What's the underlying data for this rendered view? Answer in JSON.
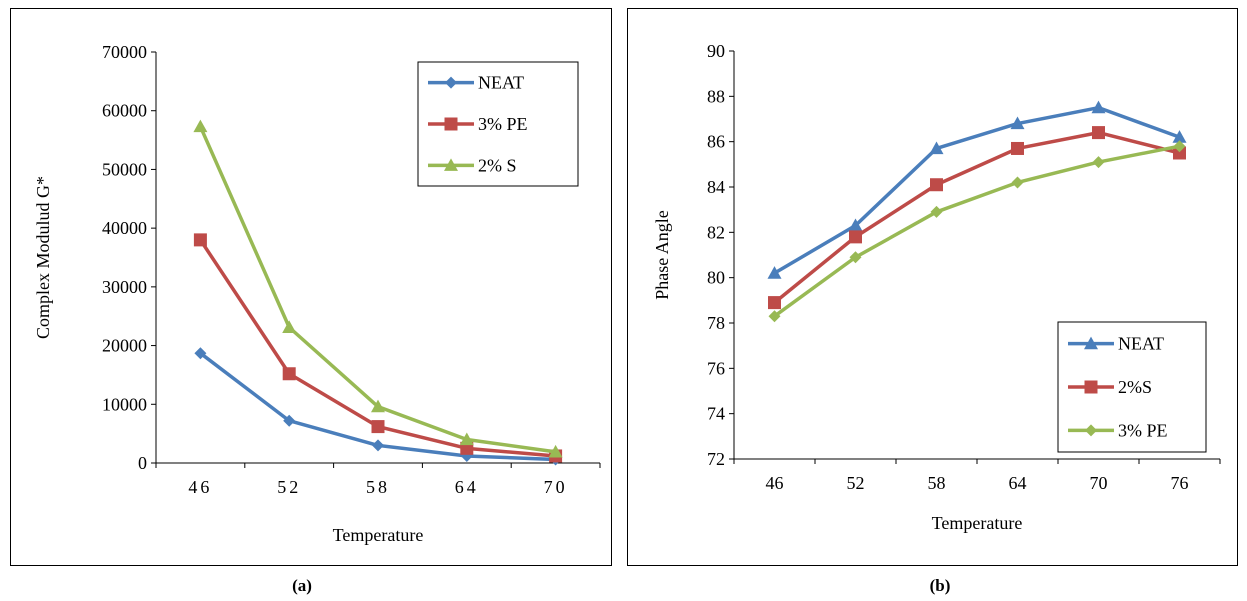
{
  "captions": {
    "a": "(a)",
    "b": "(b)"
  },
  "chart_data": [
    {
      "type": "line",
      "title": "",
      "xlabel": "Temperature",
      "ylabel": "Complex Modulud G*",
      "categories": [
        "46",
        "52",
        "58",
        "64",
        "70"
      ],
      "ylim": [
        0,
        70000
      ],
      "yticks": [
        0,
        10000,
        20000,
        30000,
        40000,
        50000,
        60000,
        70000
      ],
      "grid": false,
      "legend_position": "top-right",
      "series": [
        {
          "name": "NEAT",
          "color": "#4a7ebb",
          "marker": "diamond",
          "values": [
            18700,
            7200,
            3000,
            1200,
            600
          ]
        },
        {
          "name": "3% PE",
          "color": "#be4b48",
          "marker": "square",
          "values": [
            38000,
            15200,
            6200,
            2500,
            1200
          ]
        },
        {
          "name": "2% S",
          "color": "#98b954",
          "marker": "triangle",
          "values": [
            57300,
            23100,
            9600,
            4000,
            1900
          ]
        }
      ]
    },
    {
      "type": "line",
      "title": "",
      "xlabel": "Temperature",
      "ylabel": "Phase Angle",
      "categories": [
        "46",
        "52",
        "58",
        "64",
        "70",
        "76"
      ],
      "ylim": [
        72,
        90
      ],
      "yticks": [
        72,
        74,
        76,
        78,
        80,
        82,
        84,
        86,
        88,
        90
      ],
      "grid": false,
      "legend_position": "bottom-right",
      "series": [
        {
          "name": "NEAT",
          "color": "#4a7ebb",
          "marker": "triangle",
          "values": [
            80.2,
            82.3,
            85.7,
            86.8,
            87.5,
            86.2
          ]
        },
        {
          "name": "2%S",
          "color": "#be4b48",
          "marker": "square",
          "values": [
            78.9,
            81.8,
            84.1,
            85.7,
            86.4,
            85.5
          ]
        },
        {
          "name": "3% PE",
          "color": "#98b954",
          "marker": "diamond",
          "values": [
            78.3,
            80.9,
            82.9,
            84.2,
            85.1,
            85.8
          ]
        }
      ]
    }
  ]
}
